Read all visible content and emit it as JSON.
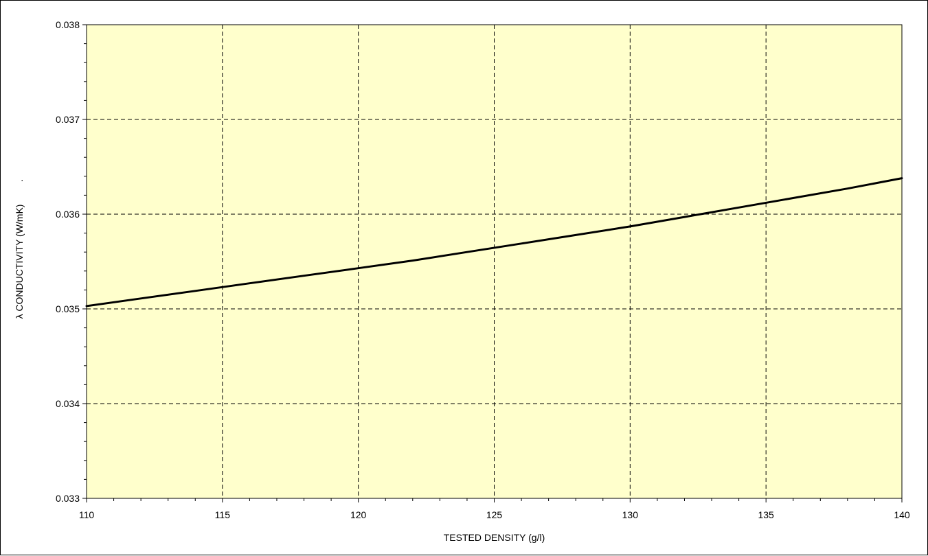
{
  "chart_data": {
    "type": "line",
    "title": "",
    "xlabel": "TESTED DENSITY (g/l)",
    "ylabel": "λ CONDUCTIVITY (W/mK)",
    "xlim": [
      110,
      140
    ],
    "ylim": [
      0.033,
      0.038
    ],
    "x_ticks": [
      "110",
      "115",
      "120",
      "125",
      "130",
      "135",
      "140"
    ],
    "y_ticks": [
      "0.033",
      "0.034",
      "0.035",
      "0.036",
      "0.037",
      "0.038"
    ],
    "grid": true,
    "legend": "none",
    "stray_mark": ".",
    "colors": {
      "plot_background": "#FFFFCC",
      "line": "#000000",
      "grid": "#000000"
    },
    "series": [
      {
        "x": [
          110,
          112,
          114,
          116,
          118,
          120,
          122,
          124,
          126,
          128,
          130,
          132,
          134,
          136,
          138,
          140
        ],
        "values": [
          0.03503,
          0.03511,
          0.03519,
          0.03527,
          0.03535,
          0.03543,
          0.03551,
          0.0356,
          0.03569,
          0.03578,
          0.03587,
          0.03597,
          0.03607,
          0.03617,
          0.03627,
          0.03638
        ]
      }
    ]
  }
}
